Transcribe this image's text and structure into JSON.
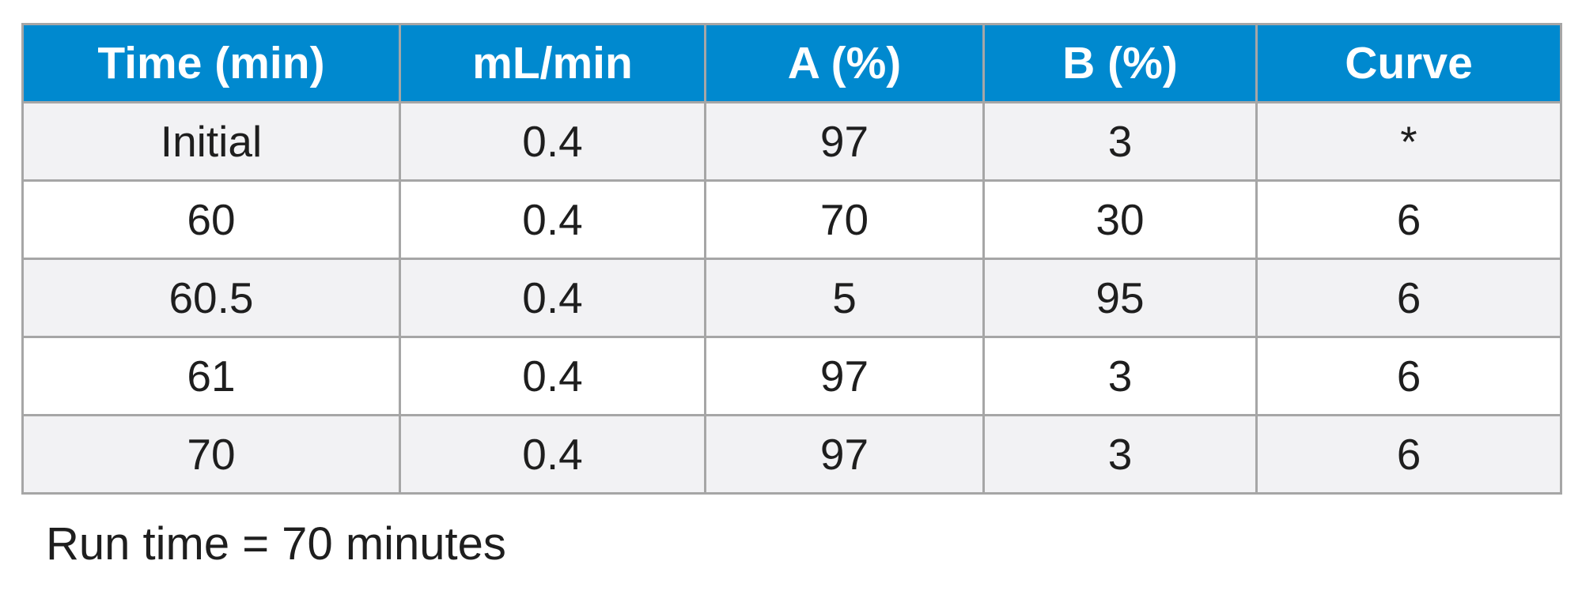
{
  "table": {
    "headers": [
      "Time (min)",
      "mL/min",
      "A (%)",
      "B (%)",
      "Curve"
    ],
    "rows": [
      [
        "Initial",
        "0.4",
        "97",
        "3",
        "*"
      ],
      [
        "60",
        "0.4",
        "70",
        "30",
        "6"
      ],
      [
        "60.5",
        "0.4",
        "5",
        "95",
        "6"
      ],
      [
        "61",
        "0.4",
        "97",
        "3",
        "6"
      ],
      [
        "70",
        "0.4",
        "97",
        "3",
        "6"
      ]
    ]
  },
  "footnote": "Run time = 70 minutes",
  "colors": {
    "header_background": "#0089cf",
    "header_text": "#ffffff",
    "row_shaded": "#f2f2f4",
    "row_plain": "#ffffff",
    "grid_lines": "#a6a6a6"
  }
}
